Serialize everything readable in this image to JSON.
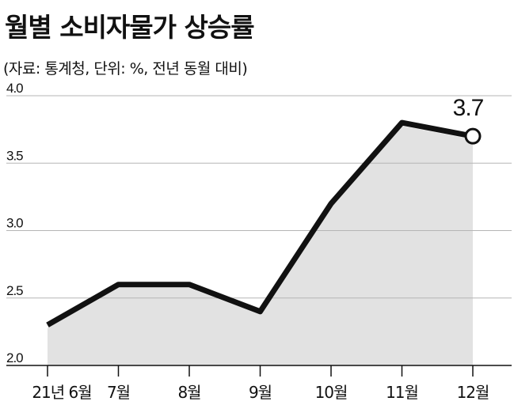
{
  "title": "월별 소비자물가 상승률",
  "subtitle": "(자료: 통계청, 단위: %, 전년 동월 대비)",
  "chart_data": {
    "type": "area",
    "title": "월별 소비자물가 상승률",
    "subtitle": "(자료: 통계청, 단위: %, 전년 동월 대비)",
    "categories": [
      "21년 6월",
      "7월",
      "8월",
      "9월",
      "10월",
      "11월",
      "12월"
    ],
    "values": [
      2.3,
      2.6,
      2.6,
      2.4,
      3.2,
      3.8,
      3.7
    ],
    "ylim": [
      2.0,
      4.0
    ],
    "yticks": [
      "2.0",
      "2.5",
      "3.0",
      "3.5",
      "4.0"
    ],
    "data_labels": [
      {
        "index": 6,
        "text": "3.7"
      }
    ],
    "grid": "horizontal",
    "colors": {
      "line": "#111111",
      "area": "#e2e2e2",
      "grid": "#b5b5b5",
      "marker_fill": "#ffffff"
    }
  }
}
